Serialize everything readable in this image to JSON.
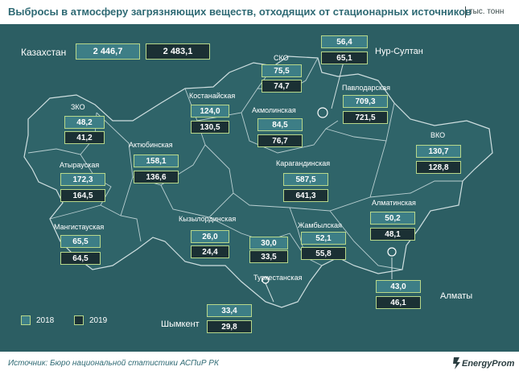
{
  "title": "Выбросы в атмосферу загрязняющих веществ, отходящих от стационарных источников",
  "unit": "тыс. тонн",
  "source": "Источник: Бюро национальной статистики АСПиР РК",
  "logo": "EnergyProm",
  "legend": {
    "y2018": "2018",
    "y2019": "2019"
  },
  "colors": {
    "fill_2018": "#3d7e86",
    "fill_2019": "#1b3034",
    "border": "#b8d88a",
    "map": "#2c5e63"
  },
  "kazakhstan": {
    "label": "Казахстан",
    "v2018": "2 446,7",
    "v2019": "2 483,1"
  },
  "regions": {
    "zko": {
      "label": "ЗКО",
      "v2018": "48,2",
      "v2019": "41,2"
    },
    "atyrau": {
      "label": "Атырауская",
      "v2018": "172,3",
      "v2019": "164,5"
    },
    "mangistau": {
      "label": "Мангистауская",
      "v2018": "65,5",
      "v2019": "64,5"
    },
    "aktobe": {
      "label": "Актюбинская",
      "v2018": "158,1",
      "v2019": "136,6"
    },
    "kostanay": {
      "label": "Костанайская",
      "v2018": "124,0",
      "v2019": "130,5"
    },
    "sko": {
      "label": "СКО",
      "v2018": "75,5",
      "v2019": "74,7"
    },
    "akmola": {
      "label": "Акмолинская",
      "v2018": "84,5",
      "v2019": "76,7"
    },
    "nursultan": {
      "label": "Нур-Султан",
      "v2018": "56,4",
      "v2019": "65,1"
    },
    "pavlodar": {
      "label": "Павлодарская",
      "v2018": "709,3",
      "v2019": "721,5"
    },
    "vko": {
      "label": "ВКО",
      "v2018": "130,7",
      "v2019": "128,8"
    },
    "karaganda": {
      "label": "Карагандинская",
      "v2018": "587,5",
      "v2019": "641,3"
    },
    "kyzylorda": {
      "label": "Кызылординская",
      "v2018": "26,0",
      "v2019": "24,4"
    },
    "turkestan": {
      "label": "Туркестанская",
      "v2018": "30,0",
      "v2019": "33,5"
    },
    "zhambyl": {
      "label": "Жамбылская",
      "v2018": "52,1",
      "v2019": "55,8"
    },
    "almaty_region": {
      "label": "Алматинская",
      "v2018": "50,2",
      "v2019": "48,1"
    },
    "almaty": {
      "label": "Алматы",
      "v2018": "43,0",
      "v2019": "46,1"
    },
    "shymkent": {
      "label": "Шымкент",
      "v2018": "33,4",
      "v2019": "29,8"
    }
  }
}
